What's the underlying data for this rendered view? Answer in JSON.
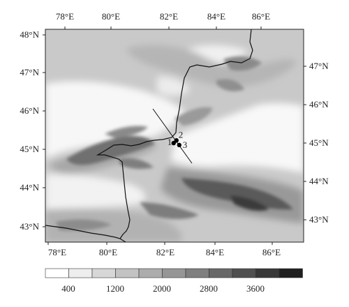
{
  "map": {
    "top_axis_labels": [
      "78°E",
      "80°E",
      "82°E",
      "84°E",
      "86°E"
    ],
    "bottom_axis_labels": [
      "78°E",
      "80°E",
      "82°E",
      "84°E",
      "86°E"
    ],
    "left_axis_labels": [
      "48°N",
      "47°N",
      "46°N",
      "45°N",
      "44°N",
      "43°N"
    ],
    "right_axis_labels": [
      "47°N",
      "46°N",
      "45°N",
      "44°N",
      "43°N"
    ],
    "stations": [
      {
        "id": "1",
        "label": "1",
        "lon": 82.48,
        "lat": 45.18
      },
      {
        "id": "2",
        "label": "2",
        "lon": 82.58,
        "lat": 45.25
      },
      {
        "id": "3",
        "label": "3",
        "lon": 82.68,
        "lat": 45.13
      }
    ]
  },
  "legend": {
    "type": "terrain-elevation",
    "labels": [
      "400",
      "1200",
      "2000",
      "2800",
      "3600"
    ],
    "colors": [
      "#ffffff",
      "#eeeeee",
      "#d7d7d7",
      "#c3c3c3",
      "#acacac",
      "#969696",
      "#7f7f7f",
      "#686868",
      "#505050",
      "#383838",
      "#1f1f1f"
    ]
  }
}
